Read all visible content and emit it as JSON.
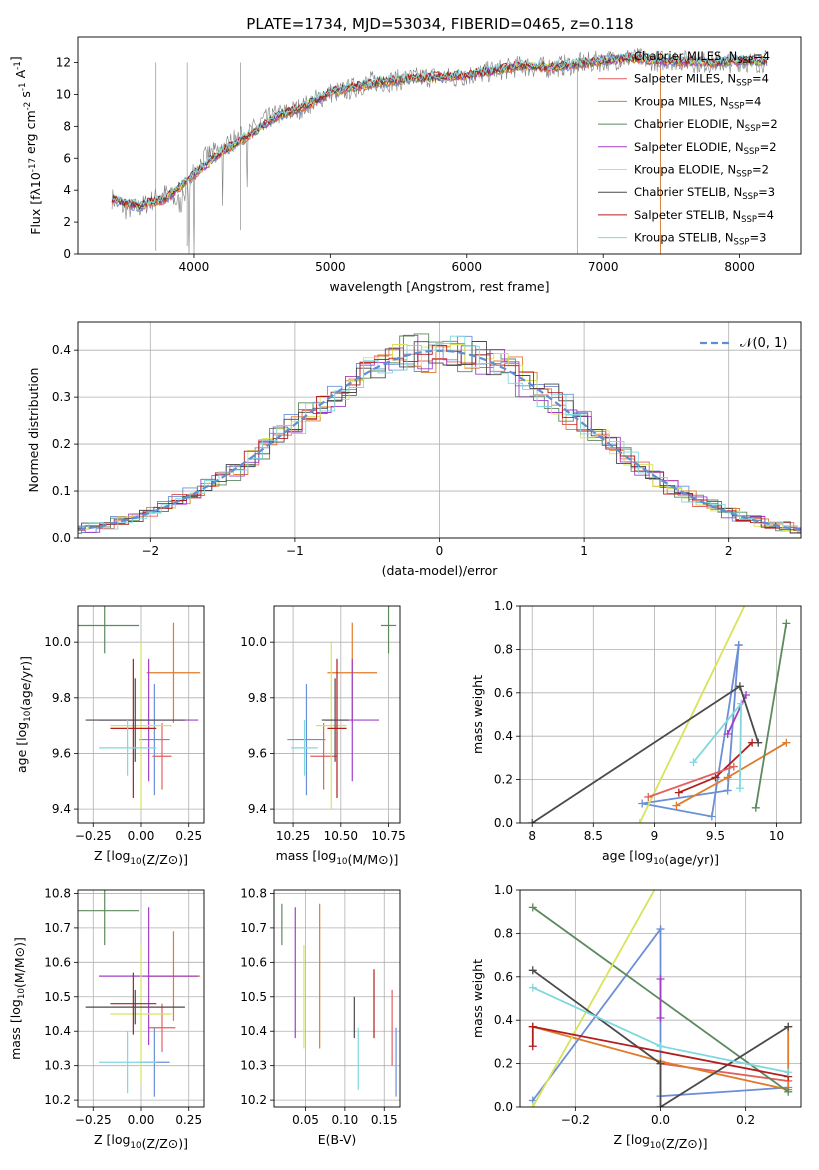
{
  "figure_title": "PLATE=1734, MJD=53034, FIBERID=0465, z=0.118",
  "series_styles": [
    {
      "name": "Chabrier MILES, N$_{SSP}$=4",
      "label_main": "Chabrier MILES, N",
      "label_sub": "SSP",
      "label_tail": "=4",
      "color": "#6b8fd6"
    },
    {
      "name": "Salpeter MILES, N$_{SSP}$=4",
      "label_main": "Salpeter MILES, N",
      "label_sub": "SSP",
      "label_tail": "=4",
      "color": "#e1615f"
    },
    {
      "name": "Kroupa MILES, N$_{SSP}$=4",
      "label_main": "Kroupa MILES, N",
      "label_sub": "SSP",
      "label_tail": "=4",
      "color": "#e07b2b"
    },
    {
      "name": "Chabrier ELODIE, N$_{SSP}$=2",
      "label_main": "Chabrier ELODIE, N",
      "label_sub": "SSP",
      "label_tail": "=2",
      "color": "#5d8a5d"
    },
    {
      "name": "Salpeter ELODIE, N$_{SSP}$=2",
      "label_main": "Salpeter ELODIE, N",
      "label_sub": "SSP",
      "label_tail": "=2",
      "color": "#a040c8"
    },
    {
      "name": "Kroupa ELODIE, N$_{SSP}$=2",
      "label_main": "Kroupa ELODIE, N",
      "label_sub": "SSP",
      "label_tail": "=2",
      "color": "#d7e45a"
    },
    {
      "name": "Chabrier STELIB, N$_{SSP}$=3",
      "label_main": "Chabrier STELIB, N",
      "label_sub": "SSP",
      "label_tail": "=3",
      "color": "#4a4a4a"
    },
    {
      "name": "Salpeter STELIB, N$_{SSP}$=4",
      "label_main": "Salpeter STELIB, N",
      "label_sub": "SSP",
      "label_tail": "=4",
      "color": "#b01e1e"
    },
    {
      "name": "Kroupa STELIB, N$_{SSP}$=3",
      "label_main": "Kroupa STELIB, N",
      "label_sub": "SSP",
      "label_tail": "=3",
      "color": "#7fd8de"
    }
  ],
  "chart_data": [
    {
      "id": "spectrum",
      "type": "line",
      "xlabel": "wavelength [Angstrom, rest frame]",
      "ylabel": "Flux [f$_\\lambda$10$^{-17}$ erg cm$^{-2}$ s$^{-1}$ A$^{-1}$]",
      "xlim": [
        3150,
        8450
      ],
      "ylim": [
        0,
        13.6
      ],
      "xticks": [
        4000,
        5000,
        6000,
        7000,
        8000
      ],
      "yticks": [
        0,
        2,
        4,
        6,
        8,
        10,
        12
      ],
      "grid": false,
      "legend_placement": "right",
      "data_series": {
        "name": "data",
        "color": "#808080",
        "x": [
          3400,
          3500,
          3600,
          3700,
          3800,
          3900,
          4000,
          4100,
          4200,
          4300,
          4400,
          4500,
          4600,
          4700,
          4800,
          4900,
          5000,
          5100,
          5200,
          5300,
          5400,
          5500,
          5600,
          5700,
          5800,
          5900,
          6000,
          6100,
          6200,
          6300,
          6400,
          6500,
          6600,
          6700,
          6800,
          6900,
          7000,
          7100,
          7200,
          7300,
          7400,
          7500,
          7600,
          7700,
          7800,
          7900,
          8000,
          8100,
          8200
        ],
        "y": [
          3.5,
          2.8,
          2.9,
          3.4,
          3.8,
          3.1,
          5.2,
          6.2,
          6.5,
          7.2,
          7.5,
          8.3,
          8.7,
          8.9,
          9.2,
          9.7,
          10.1,
          10.2,
          10.5,
          10.8,
          10.8,
          10.9,
          11.0,
          11.1,
          11.1,
          11.0,
          11.2,
          11.3,
          11.5,
          11.6,
          11.8,
          11.7,
          11.7,
          11.8,
          11.9,
          12.0,
          12.1,
          12.2,
          12.3,
          12.2,
          12.1,
          12.2,
          12.1,
          12.0,
          12.0,
          12.0,
          12.1,
          12.0,
          12.1
        ]
      },
      "model_x": [
        3400,
        3600,
        3800,
        4000,
        4200,
        4400,
        4600,
        4800,
        5000,
        5200,
        5400,
        5600,
        5800,
        6000,
        6200,
        6400,
        6600,
        6800,
        7000,
        7200,
        7400,
        7600,
        7800,
        8000,
        8200
      ],
      "model_y": [
        3.4,
        3.0,
        3.5,
        5.0,
        6.4,
        7.4,
        8.6,
        9.2,
        10.1,
        10.5,
        10.8,
        11.0,
        11.1,
        11.2,
        11.5,
        11.8,
        11.7,
        11.9,
        12.1,
        12.3,
        12.1,
        12.1,
        12.0,
        12.1,
        12.1
      ]
    },
    {
      "id": "residuals",
      "type": "bar",
      "xlabel": "(data-model)/error",
      "ylabel": "Normed distribution",
      "xlim": [
        -2.5,
        2.5
      ],
      "ylim": [
        0,
        0.46
      ],
      "xticks": [
        -2,
        -1,
        0,
        1,
        2
      ],
      "yticks": [
        0.0,
        0.1,
        0.2,
        0.3,
        0.4
      ],
      "grid": true,
      "legend": [
        {
          "label": "$\\mathcal{N}(0,1)$",
          "style": "dashed",
          "color": "#5b8fd6"
        }
      ],
      "legend_placement": "top-right",
      "bin_width": 0.1,
      "gaussian": {
        "mu": 0,
        "sigma": 1
      }
    },
    {
      "id": "age_vs_Z",
      "type": "scatter",
      "xlabel": "Z [log$_{10}$(Z/Z$_\\odot$)]",
      "ylabel": "age  [log$_{10}$(age/yr)]",
      "xlim": [
        -0.33,
        0.33
      ],
      "ylim": [
        9.35,
        10.13
      ],
      "xticks": [
        -0.25,
        0.0,
        0.25
      ],
      "xtick_labels": [
        "−0.25",
        "0.00",
        "0.25"
      ],
      "yticks": [
        9.4,
        9.6,
        9.8,
        10.0
      ],
      "grid": true,
      "points": [
        {
          "series": 0,
          "x": 0.07,
          "xerr": 0.08,
          "y": 9.65,
          "yerr": 0.2
        },
        {
          "series": 1,
          "x": 0.11,
          "xerr": 0.05,
          "y": 9.59,
          "yerr": 0.12
        },
        {
          "series": 2,
          "x": 0.17,
          "xerr": 0.14,
          "y": 9.89,
          "yerr": 0.18
        },
        {
          "series": 3,
          "x": -0.19,
          "xerr": 0.18,
          "y": 10.06,
          "yerr": 0.1
        },
        {
          "series": 4,
          "x": 0.04,
          "xerr": 0.26,
          "y": 9.72,
          "yerr": 0.22
        },
        {
          "series": 5,
          "x": 0.0,
          "xerr": 0.16,
          "y": 9.7,
          "yerr": 0.3
        },
        {
          "series": 6,
          "x": -0.03,
          "xerr": 0.26,
          "y": 9.72,
          "yerr": 0.15
        },
        {
          "series": 7,
          "x": -0.04,
          "xerr": 0.12,
          "y": 9.69,
          "yerr": 0.25
        },
        {
          "series": 8,
          "x": -0.07,
          "xerr": 0.15,
          "y": 9.62,
          "yerr": 0.1
        }
      ]
    },
    {
      "id": "age_vs_mass",
      "type": "scatter",
      "xlabel": "mass [log$_{10}$(M/M$_\\odot$)]",
      "ylabel": "",
      "xlim": [
        10.15,
        10.81
      ],
      "ylim": [
        9.35,
        10.13
      ],
      "xticks": [
        10.25,
        10.5,
        10.75
      ],
      "xtick_labels": [
        "10.25",
        "10.50",
        "10.75"
      ],
      "yticks": [
        9.4,
        9.6,
        9.8,
        10.0
      ],
      "grid": true,
      "points": [
        {
          "series": 0,
          "x": 10.32,
          "xerr": 0.1,
          "y": 9.65,
          "yerr": 0.2
        },
        {
          "series": 1,
          "x": 10.41,
          "xerr": 0.07,
          "y": 9.59,
          "yerr": 0.12
        },
        {
          "series": 2,
          "x": 10.56,
          "xerr": 0.13,
          "y": 9.89,
          "yerr": 0.18
        },
        {
          "series": 3,
          "x": 10.75,
          "xerr": 0.04,
          "y": 10.06,
          "yerr": 0.1
        },
        {
          "series": 4,
          "x": 10.56,
          "xerr": 0.14,
          "y": 9.72,
          "yerr": 0.22
        },
        {
          "series": 5,
          "x": 10.45,
          "xerr": 0.08,
          "y": 9.7,
          "yerr": 0.3
        },
        {
          "series": 6,
          "x": 10.47,
          "xerr": 0.07,
          "y": 9.72,
          "yerr": 0.15
        },
        {
          "series": 7,
          "x": 10.48,
          "xerr": 0.05,
          "y": 9.69,
          "yerr": 0.25
        },
        {
          "series": 8,
          "x": 10.31,
          "xerr": 0.07,
          "y": 9.62,
          "yerr": 0.1
        }
      ]
    },
    {
      "id": "massweight_vs_age",
      "type": "line",
      "xlabel": "age  [log$_{10}$(age/yr)]",
      "ylabel": "mass weight",
      "xlim": [
        7.9,
        10.2
      ],
      "ylim": [
        0,
        1
      ],
      "xticks": [
        8.0,
        8.5,
        9.0,
        9.5,
        10.0
      ],
      "yticks": [
        0.0,
        0.2,
        0.4,
        0.6,
        0.8,
        1.0
      ],
      "grid": true,
      "series": [
        {
          "series": 0,
          "x": [
            9.69,
            9.47,
            8.9,
            9.6,
            9.69
          ],
          "y": [
            0.82,
            0.03,
            0.09,
            0.15,
            0.82
          ]
        },
        {
          "series": 2,
          "x": [
            9.18,
            9.6,
            10.08
          ],
          "y": [
            0.08,
            0.21,
            0.37
          ]
        },
        {
          "series": 3,
          "x": [
            9.83,
            10.08
          ],
          "y": [
            0.07,
            0.92
          ]
        },
        {
          "series": 4,
          "x": [
            9.6,
            9.75
          ],
          "y": [
            0.41,
            0.59
          ]
        },
        {
          "series": 5,
          "x": [
            8.88,
            9.78
          ],
          "y": [
            0.0,
            1.05
          ]
        },
        {
          "series": 6,
          "x": [
            8.0,
            9.7,
            9.85
          ],
          "y": [
            0.0,
            0.63,
            0.37
          ]
        },
        {
          "series": 7,
          "x": [
            9.2,
            9.5,
            9.8
          ],
          "y": [
            0.14,
            0.21,
            0.37
          ]
        },
        {
          "series": 8,
          "x": [
            9.32,
            9.71,
            9.7
          ],
          "y": [
            0.28,
            0.55,
            0.16
          ]
        },
        {
          "series": 1,
          "x": [
            8.95,
            9.65
          ],
          "y": [
            0.12,
            0.26
          ]
        }
      ]
    },
    {
      "id": "mass_vs_Z",
      "type": "scatter",
      "xlabel": "Z [log$_{10}$(Z/Z$_\\odot$)]",
      "ylabel": "mass [log$_{10}$(M/M$_\\odot$)]",
      "xlim": [
        -0.33,
        0.33
      ],
      "ylim": [
        10.18,
        10.81
      ],
      "xticks": [
        -0.25,
        0.0,
        0.25
      ],
      "xtick_labels": [
        "−0.25",
        "0.00",
        "0.25"
      ],
      "yticks": [
        10.2,
        10.3,
        10.4,
        10.5,
        10.6,
        10.7,
        10.8
      ],
      "grid": true,
      "points": [
        {
          "series": 0,
          "x": 0.07,
          "xerr": 0.08,
          "y": 10.31,
          "yerr": 0.1
        },
        {
          "series": 1,
          "x": 0.11,
          "xerr": 0.07,
          "y": 10.41,
          "yerr": 0.07
        },
        {
          "series": 2,
          "x": 0.17,
          "xerr": 0.14,
          "y": 10.56,
          "yerr": 0.13
        },
        {
          "series": 3,
          "x": -0.19,
          "xerr": 0.18,
          "y": 10.75,
          "yerr": 0.1
        },
        {
          "series": 4,
          "x": 0.04,
          "xerr": 0.26,
          "y": 10.56,
          "yerr": 0.2
        },
        {
          "series": 5,
          "x": 0.0,
          "xerr": 0.16,
          "y": 10.45,
          "yerr": 0.2
        },
        {
          "series": 6,
          "x": -0.03,
          "xerr": 0.26,
          "y": 10.47,
          "yerr": 0.05
        },
        {
          "series": 7,
          "x": -0.04,
          "xerr": 0.12,
          "y": 10.48,
          "yerr": 0.09
        },
        {
          "series": 8,
          "x": -0.07,
          "xerr": 0.15,
          "y": 10.31,
          "yerr": 0.09
        }
      ]
    },
    {
      "id": "mass_vs_ebv",
      "type": "scatter",
      "xlabel": "E(B-V)",
      "ylabel": "",
      "xlim": [
        0.01,
        0.17
      ],
      "ylim": [
        10.18,
        10.81
      ],
      "xticks": [
        0.05,
        0.1,
        0.15
      ],
      "xtick_labels": [
        "0.05",
        "0.10",
        "0.15"
      ],
      "yticks": [
        10.2,
        10.3,
        10.4,
        10.5,
        10.6,
        10.7,
        10.8
      ],
      "grid": true,
      "points": [
        {
          "series": 0,
          "x": 0.165,
          "y": 10.31,
          "yerr": 0.1
        },
        {
          "series": 1,
          "x": 0.16,
          "y": 10.41,
          "yerr": 0.11
        },
        {
          "series": 2,
          "x": 0.068,
          "y": 10.56,
          "yerr": 0.21
        },
        {
          "series": 3,
          "x": 0.02,
          "y": 10.71,
          "yerr": 0.06
        },
        {
          "series": 4,
          "x": 0.037,
          "y": 10.57,
          "yerr": 0.19
        },
        {
          "series": 5,
          "x": 0.048,
          "y": 10.5,
          "yerr": 0.15
        },
        {
          "series": 6,
          "x": 0.112,
          "y": 10.44,
          "yerr": 0.06
        },
        {
          "series": 7,
          "x": 0.137,
          "y": 10.48,
          "yerr": 0.1
        },
        {
          "series": 8,
          "x": 0.117,
          "y": 10.32,
          "yerr": 0.09
        }
      ]
    },
    {
      "id": "massweight_vs_Z",
      "type": "line",
      "xlabel": "Z [log$_{10}$(Z/Z$_\\odot$)]",
      "ylabel": "mass weight",
      "xlim": [
        -0.33,
        0.33
      ],
      "ylim": [
        0,
        1
      ],
      "xticks": [
        -0.2,
        0.0,
        0.2
      ],
      "xtick_labels": [
        "−0.2",
        "0.0",
        "0.2"
      ],
      "yticks": [
        0.0,
        0.2,
        0.4,
        0.6,
        0.8,
        1.0
      ],
      "grid": true,
      "series": [
        {
          "series": 0,
          "x": [
            -0.3,
            0.0,
            0.0,
            0.3
          ],
          "y": [
            0.03,
            0.82,
            0.05,
            0.09
          ]
        },
        {
          "series": 1,
          "x": [
            0.0,
            0.3
          ],
          "y": [
            0.2,
            0.12
          ]
        },
        {
          "series": 2,
          "x": [
            -0.3,
            0.0,
            0.3,
            0.3
          ],
          "y": [
            0.37,
            0.21,
            0.08,
            0.37
          ]
        },
        {
          "series": 3,
          "x": [
            -0.3,
            0.3
          ],
          "y": [
            0.92,
            0.07
          ]
        },
        {
          "series": 4,
          "x": [
            0.0,
            0.0
          ],
          "y": [
            0.41,
            0.59
          ]
        },
        {
          "series": 5,
          "x": [
            -0.3,
            0.0
          ],
          "y": [
            0.0,
            1.05
          ]
        },
        {
          "series": 6,
          "x": [
            -0.3,
            0.0,
            0.0,
            0.3
          ],
          "y": [
            0.63,
            0.2,
            0.0,
            0.37
          ]
        },
        {
          "series": 7,
          "x": [
            -0.3,
            -0.3,
            0.3
          ],
          "y": [
            0.28,
            0.37,
            0.14
          ]
        },
        {
          "series": 8,
          "x": [
            -0.3,
            0.0,
            0.3
          ],
          "y": [
            0.55,
            0.28,
            0.16
          ]
        }
      ]
    }
  ]
}
